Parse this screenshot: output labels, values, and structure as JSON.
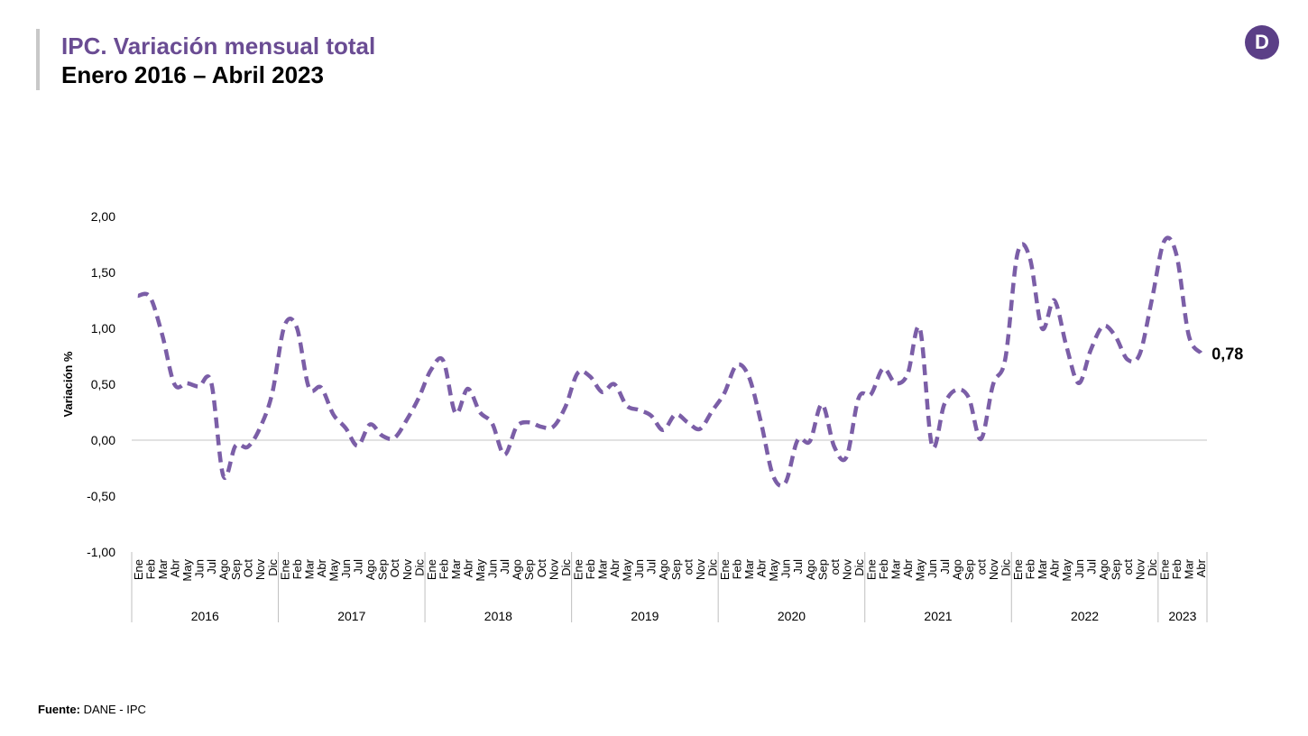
{
  "header": {
    "title": "IPC. Variación mensual total",
    "subtitle": "Enero 2016 – Abril 2023",
    "logo_letter": "D"
  },
  "footer": {
    "source_label": "Fuente:",
    "source_value": "DANE - IPC"
  },
  "colors": {
    "accent": "#7b5ea7",
    "title": "#6a4c93",
    "logo": "#5b3f87"
  },
  "chart_data": {
    "type": "line",
    "ylabel": "Variación %",
    "ylim": [
      -1.0,
      2.0
    ],
    "yticks": [
      "2,00",
      "1,50",
      "1,00",
      "0,50",
      "0,00",
      "-0,50",
      "-1,00"
    ],
    "years": [
      {
        "label": "2016",
        "months": [
          "Ene",
          "Feb",
          "Mar",
          "Abr",
          "May",
          "Jun",
          "Jul",
          "Ago",
          "Sep",
          "Oct",
          "Nov",
          "Dic"
        ]
      },
      {
        "label": "2017",
        "months": [
          "Ene",
          "Feb",
          "Mar",
          "Abr",
          "May",
          "Jun",
          "Jul",
          "Ago",
          "Sep",
          "Oct",
          "Nov",
          "Dic"
        ]
      },
      {
        "label": "2018",
        "months": [
          "Ene",
          "Feb",
          "Mar",
          "Abr",
          "May",
          "Jun",
          "Jul",
          "Ago",
          "Sep",
          "Oct",
          "Nov",
          "Dic"
        ]
      },
      {
        "label": "2019",
        "months": [
          "Ene",
          "Feb",
          "Mar",
          "Abr",
          "May",
          "Jun",
          "Jul",
          "Ago",
          "Sep",
          "oct",
          "Nov",
          "Dic"
        ]
      },
      {
        "label": "2020",
        "months": [
          "Ene",
          "Feb",
          "Mar",
          "Abr",
          "May",
          "Jun",
          "Jul",
          "Ago",
          "Sep",
          "oct",
          "Nov",
          "Dic"
        ]
      },
      {
        "label": "2021",
        "months": [
          "Ene",
          "Feb",
          "Mar",
          "Abr",
          "May",
          "Jun",
          "Jul",
          "Ago",
          "Sep",
          "oct",
          "Nov",
          "Dic"
        ]
      },
      {
        "label": "2022",
        "months": [
          "Ene",
          "Feb",
          "Mar",
          "Abr",
          "May",
          "Jun",
          "Jul",
          "Ago",
          "Sep",
          "oct",
          "Nov",
          "Dic"
        ]
      },
      {
        "label": "2023",
        "months": [
          "Ene",
          "Feb",
          "Mar",
          "Abr"
        ]
      }
    ],
    "values": [
      1.29,
      1.28,
      0.94,
      0.5,
      0.51,
      0.48,
      0.52,
      -0.32,
      -0.05,
      -0.06,
      0.11,
      0.42,
      1.02,
      1.01,
      0.47,
      0.47,
      0.23,
      0.11,
      -0.05,
      0.14,
      0.04,
      0.02,
      0.18,
      0.38,
      0.63,
      0.71,
      0.24,
      0.46,
      0.25,
      0.15,
      -0.13,
      0.12,
      0.16,
      0.12,
      0.12,
      0.3,
      0.6,
      0.57,
      0.43,
      0.5,
      0.31,
      0.27,
      0.22,
      0.09,
      0.23,
      0.16,
      0.1,
      0.26,
      0.42,
      0.67,
      0.57,
      0.16,
      -0.32,
      -0.38,
      0.0,
      -0.01,
      0.32,
      -0.06,
      -0.15,
      0.38,
      0.41,
      0.64,
      0.51,
      0.59,
      1.0,
      -0.05,
      0.32,
      0.45,
      0.38,
      0.01,
      0.5,
      0.73,
      1.67,
      1.63,
      1.0,
      1.25,
      0.84,
      0.51,
      0.81,
      1.02,
      0.93,
      0.72,
      0.77,
      1.26,
      1.78,
      1.66,
      0.94,
      0.78
    ],
    "last_value_label": "0,78"
  }
}
